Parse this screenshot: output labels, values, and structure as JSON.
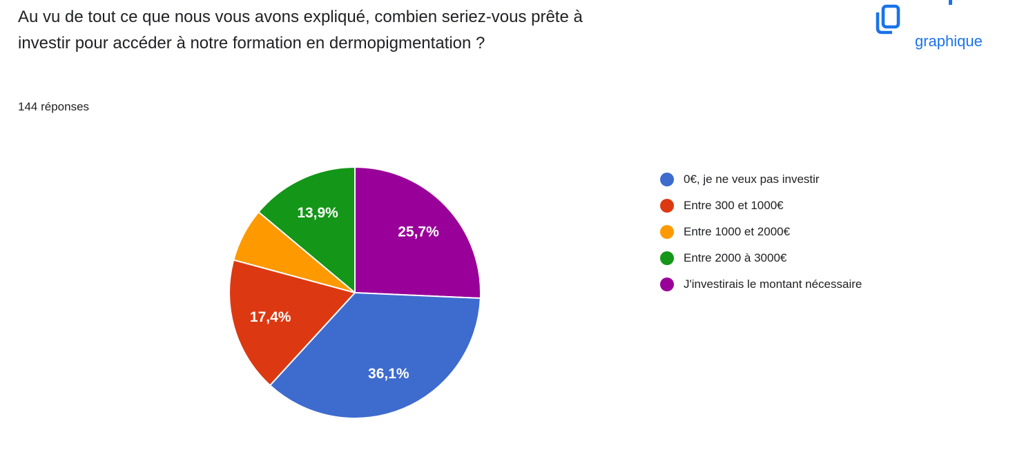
{
  "header": {
    "question_title_lines": [
      "Au vu de tout ce que nous vous avons expliqué, combien seriez-vous prête à",
      "investir pour accéder à notre formation en dermopigmentation ?"
    ],
    "question_title": "Au vu de tout ce que nous vous avons expliqué, combien seriez-vous prête à investir pour accéder à notre formation en dermopigmentation ?",
    "responses_count": "144 réponses",
    "copy_action": {
      "label": "graphique",
      "icon": "copy-icon",
      "accent_color": "#1a73e8"
    }
  },
  "chart_data": {
    "type": "pie",
    "title": "",
    "legend_position": "right",
    "label_decimal_separator": ",",
    "slices": [
      {
        "label": "0€, je ne veux pas investir",
        "value": 36.1,
        "pct_label": "36,1%",
        "color": "#3e6bce"
      },
      {
        "label": "Entre 300 et 1000€",
        "value": 17.4,
        "pct_label": "17,4%",
        "color": "#dc3912"
      },
      {
        "label": "Entre 1000 et 2000€",
        "value": 6.9,
        "pct_label": "",
        "color": "#ff9900"
      },
      {
        "label": "Entre 2000 à 3000€",
        "value": 13.9,
        "pct_label": "13,9%",
        "color": "#149618"
      },
      {
        "label": "J'investirais le montant nécessaire",
        "value": 25.7,
        "pct_label": "25,7%",
        "color": "#990099"
      }
    ]
  }
}
